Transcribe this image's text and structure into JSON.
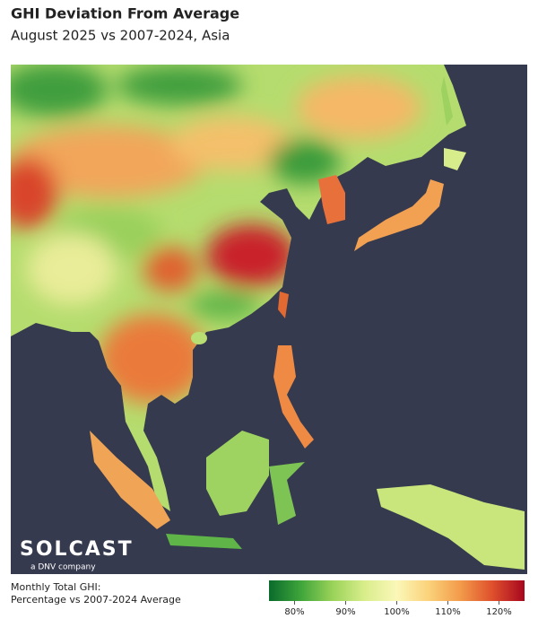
{
  "header": {
    "title": "GHI Deviation From Average",
    "subtitle": "August 2025 vs 2007-2024, Asia"
  },
  "logo": {
    "name": "SOLCAST",
    "tagline": "a DNV company"
  },
  "legend": {
    "title": [
      "Monthly Total GHI:",
      "Percentage vs 2007-2024 Average"
    ],
    "range": [
      75,
      125
    ],
    "colors": [
      "#0a6b2c",
      "#3fa53a",
      "#9bd35a",
      "#d9ee8c",
      "#fbf7b8",
      "#fbd27a",
      "#f29a4a",
      "#de4f2c",
      "#a8061e"
    ],
    "ticks": [
      {
        "value": 80,
        "label": "80%"
      },
      {
        "value": 90,
        "label": "90%"
      },
      {
        "value": 100,
        "label": "100%"
      },
      {
        "value": 110,
        "label": "110%"
      },
      {
        "value": 120,
        "label": "120%"
      }
    ]
  }
}
